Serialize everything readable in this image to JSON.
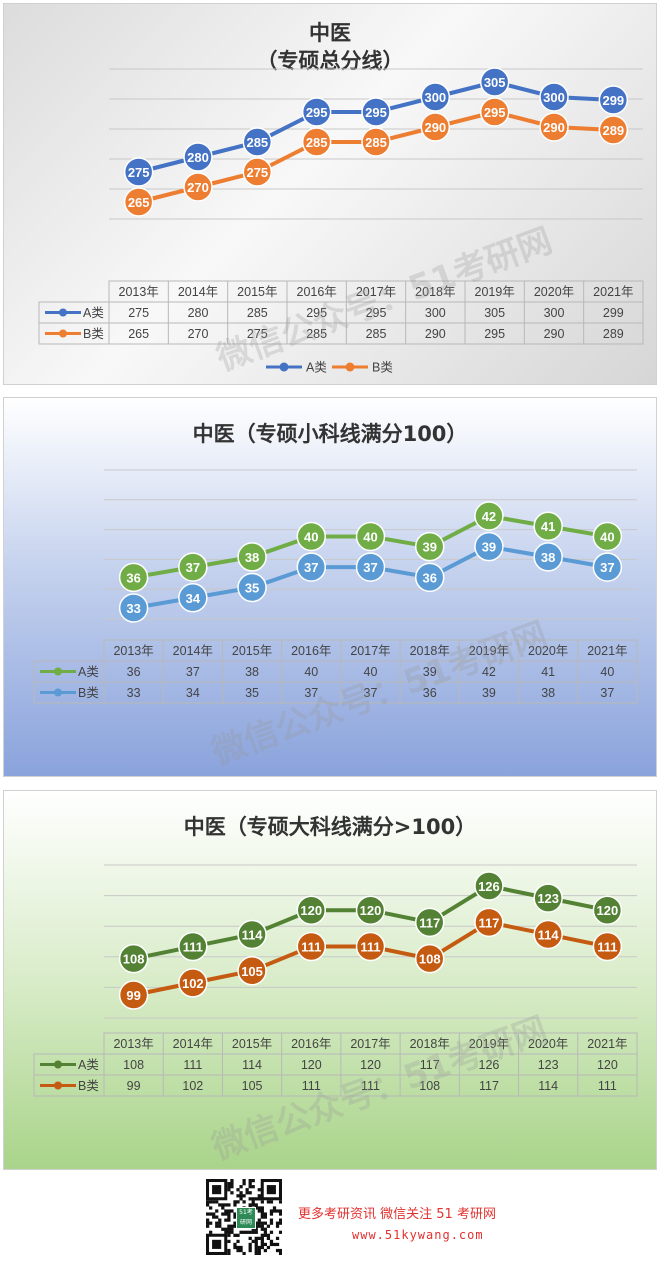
{
  "chart_data": [
    {
      "type": "line",
      "title_lines": [
        "中医",
        "（专硕总分线）"
      ],
      "categories": [
        "2013年",
        "2014年",
        "2015年",
        "2016年",
        "2017年",
        "2018年",
        "2019年",
        "2020年",
        "2021年"
      ],
      "series": [
        {
          "name": "A类",
          "values": [
            275,
            280,
            285,
            295,
            295,
            300,
            305,
            300,
            299
          ],
          "color": "#4472c4"
        },
        {
          "name": "B类",
          "values": [
            265,
            270,
            275,
            285,
            285,
            290,
            295,
            290,
            289
          ],
          "color": "#ed7d31"
        }
      ],
      "data_table": true,
      "legend": "bottom",
      "grid": true
    },
    {
      "type": "line",
      "title_lines": [
        "中医（专硕小科线满分100）"
      ],
      "categories": [
        "2013年",
        "2014年",
        "2015年",
        "2016年",
        "2017年",
        "2018年",
        "2019年",
        "2020年",
        "2021年"
      ],
      "series": [
        {
          "name": "A类",
          "values": [
            36,
            37,
            38,
            40,
            40,
            39,
            42,
            41,
            40
          ],
          "color": "#70ad47"
        },
        {
          "name": "B类",
          "values": [
            33,
            34,
            35,
            37,
            37,
            36,
            39,
            38,
            37
          ],
          "color": "#5b9bd5"
        }
      ],
      "data_table": true,
      "grid": true
    },
    {
      "type": "line",
      "title_lines": [
        "中医（专硕大科线满分>100）"
      ],
      "categories": [
        "2013年",
        "2014年",
        "2015年",
        "2016年",
        "2017年",
        "2018年",
        "2019年",
        "2020年",
        "2021年"
      ],
      "series": [
        {
          "name": "A类",
          "values": [
            108,
            111,
            114,
            120,
            120,
            117,
            126,
            123,
            120
          ],
          "color": "#548235"
        },
        {
          "name": "B类",
          "values": [
            99,
            102,
            105,
            111,
            111,
            108,
            117,
            114,
            111
          ],
          "color": "#c55a11"
        }
      ],
      "data_table": true,
      "grid": true
    }
  ],
  "watermark": "微信公众号：51考研网",
  "footer": {
    "qr_badge": "51考研网",
    "promo_line": "更多考研资讯 微信关注 51 考研网",
    "url": "www.51kywang.com"
  }
}
